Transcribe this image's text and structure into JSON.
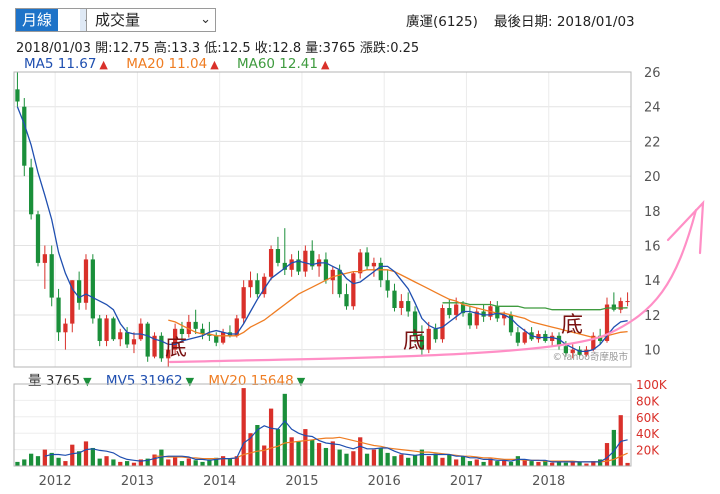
{
  "controls": {
    "period": {
      "selected": "月線"
    },
    "indicator": {
      "selected": "成交量"
    }
  },
  "header": {
    "stock": "廣運(6125)",
    "last_date_label": "最後日期: 2018/01/03"
  },
  "quote": {
    "date": "2018/01/03",
    "open": "開:12.75",
    "high": "高:13.3",
    "low": "低:12.5",
    "close": "收:12.8",
    "volume": "量:3765",
    "change": "漲跌:0.25"
  },
  "ma_legend": [
    {
      "label": "MA5 11.67",
      "color": "#1f4fb0",
      "trend": "up"
    },
    {
      "label": "MA20 11.04",
      "color": "#ef7d23",
      "trend": "up"
    },
    {
      "label": "MA60 12.41",
      "color": "#3f9b3f",
      "trend": "up"
    }
  ],
  "vol_legend": [
    {
      "label": "量 3765",
      "color": "#333333",
      "trend": "down"
    },
    {
      "label": "MV5 31962",
      "color": "#1f4fb0",
      "trend": "down"
    },
    {
      "label": "MV20 15648",
      "color": "#ef7d23",
      "trend": "down"
    }
  ],
  "colors": {
    "up": "#d9302a",
    "down": "#1a8f3a",
    "ma5": "#1f4fb0",
    "ma20": "#ef7d23",
    "ma60": "#3f9b3f",
    "annotation": "#ff8fc6",
    "note": "#7a1212"
  },
  "watermark": "©Yahoo奇摩股市",
  "annotations": {
    "label": "底",
    "count": 3
  },
  "chart_data": {
    "type": "candlestick",
    "price_axis": {
      "ylim": [
        9,
        26
      ],
      "ticks": [
        10,
        12,
        14,
        16,
        18,
        20,
        22,
        24,
        26
      ]
    },
    "volume_axis": {
      "ylim": [
        0,
        100000
      ],
      "ticks": [
        "20K",
        "40K",
        "60K",
        "80K",
        "100K"
      ]
    },
    "x_ticks": [
      "2012",
      "2013",
      "2014",
      "2015",
      "2016",
      "2017",
      "2018"
    ],
    "start_month": "2011-07",
    "ohlc": [
      [
        25,
        26,
        24,
        24.3
      ],
      [
        24,
        24.5,
        20,
        20.6
      ],
      [
        20.5,
        21,
        17.5,
        17.8
      ],
      [
        17.8,
        18,
        14.8,
        15
      ],
      [
        15,
        16,
        13.5,
        15.5
      ],
      [
        15.5,
        16,
        12.5,
        13
      ],
      [
        13,
        13.5,
        10.5,
        11
      ],
      [
        11,
        11.8,
        10,
        11.5
      ],
      [
        11.5,
        14,
        11,
        14
      ],
      [
        14,
        14.5,
        12.3,
        12.7
      ],
      [
        12.7,
        15.5,
        12.3,
        15.2
      ],
      [
        15.2,
        15.5,
        11.5,
        11.8
      ],
      [
        11.8,
        12,
        10.2,
        10.5
      ],
      [
        10.5,
        12,
        10.2,
        11.8
      ],
      [
        11.8,
        11.9,
        10.5,
        10.6
      ],
      [
        10.6,
        11.2,
        10.2,
        11
      ],
      [
        11,
        11.3,
        10.1,
        10.3
      ],
      [
        10.3,
        11,
        9.8,
        10.6
      ],
      [
        10.6,
        11.8,
        10.5,
        11.5
      ],
      [
        11.5,
        11.6,
        9.3,
        9.6
      ],
      [
        9.6,
        11,
        9.5,
        10.8
      ],
      [
        10.8,
        11,
        9.3,
        9.5
      ],
      [
        9.5,
        10.2,
        9,
        10
      ],
      [
        10,
        11.5,
        9.8,
        11.2
      ],
      [
        11.2,
        11.6,
        10.5,
        10.9
      ],
      [
        10.9,
        12,
        10.7,
        11.6
      ],
      [
        11.6,
        12.3,
        10.9,
        11.2
      ],
      [
        11.2,
        11.5,
        10.6,
        10.9
      ],
      [
        10.9,
        11.6,
        10.5,
        10.8
      ],
      [
        10.8,
        11,
        10.2,
        10.4
      ],
      [
        10.4,
        11.2,
        10.3,
        11
      ],
      [
        11,
        11.4,
        10.7,
        10.8
      ],
      [
        10.8,
        12,
        10.7,
        11.8
      ],
      [
        11.8,
        14,
        11.5,
        13.6
      ],
      [
        13.6,
        14.5,
        13,
        14
      ],
      [
        14,
        14.4,
        13,
        13.2
      ],
      [
        13.2,
        14.4,
        13,
        14.2
      ],
      [
        14.2,
        16,
        14,
        15.8
      ],
      [
        15.8,
        16.5,
        14.8,
        15
      ],
      [
        15,
        17,
        14.3,
        14.6
      ],
      [
        14.6,
        15.5,
        14.2,
        15.2
      ],
      [
        15.2,
        15.7,
        14.3,
        14.5
      ],
      [
        14.5,
        16,
        14.2,
        15.7
      ],
      [
        15.7,
        16.3,
        14.6,
        14.8
      ],
      [
        14.8,
        15.5,
        14.2,
        15.2
      ],
      [
        15.2,
        15.6,
        13.8,
        14
      ],
      [
        14,
        14.8,
        13.2,
        14.6
      ],
      [
        14.6,
        14.9,
        13,
        13.2
      ],
      [
        13.2,
        13.8,
        12.3,
        12.5
      ],
      [
        12.5,
        14.5,
        12.3,
        14.4
      ],
      [
        14.4,
        15.8,
        14.1,
        15.6
      ],
      [
        15.6,
        15.9,
        14.6,
        14.8
      ],
      [
        14.8,
        15.3,
        14.2,
        15
      ],
      [
        15,
        15.3,
        13.6,
        14
      ],
      [
        14,
        14.6,
        13,
        13.4
      ],
      [
        13.4,
        13.8,
        12.2,
        12.4
      ],
      [
        12.4,
        13.2,
        12,
        12.8
      ],
      [
        12.8,
        13.3,
        11.9,
        12.2
      ],
      [
        12.2,
        12.5,
        10.4,
        10.8
      ],
      [
        10.8,
        11.4,
        9.6,
        10
      ],
      [
        10,
        11.6,
        9.8,
        11.2
      ],
      [
        11.2,
        11.5,
        10.4,
        10.6
      ],
      [
        10.6,
        12.6,
        10.4,
        12.4
      ],
      [
        12.4,
        12.9,
        11.8,
        12
      ],
      [
        12,
        13,
        11.7,
        12.6
      ],
      [
        12.6,
        12.8,
        11.9,
        12.1
      ],
      [
        12.1,
        12.5,
        11.2,
        11.4
      ],
      [
        11.4,
        12.4,
        11.2,
        12.2
      ],
      [
        12.2,
        12.6,
        11.6,
        11.9
      ],
      [
        11.9,
        12.8,
        11.7,
        12.5
      ],
      [
        12.5,
        12.8,
        11.6,
        11.8
      ],
      [
        11.8,
        12.2,
        11.4,
        12
      ],
      [
        12,
        12.2,
        10.8,
        11
      ],
      [
        11,
        11.3,
        10.2,
        10.4
      ],
      [
        10.4,
        11.2,
        10.3,
        11
      ],
      [
        11,
        11.3,
        10.5,
        10.6
      ],
      [
        10.6,
        11.1,
        10.4,
        10.9
      ],
      [
        10.9,
        11.1,
        10.4,
        10.5
      ],
      [
        10.5,
        11,
        10.2,
        10.8
      ],
      [
        10.8,
        11,
        10,
        10.2
      ],
      [
        10.2,
        10.5,
        9.6,
        9.8
      ],
      [
        9.8,
        10.3,
        9.5,
        10
      ],
      [
        10,
        10.2,
        9.6,
        9.7
      ],
      [
        9.7,
        10.2,
        9.6,
        10
      ],
      [
        10,
        11,
        9.9,
        10.8
      ],
      [
        10.8,
        11.2,
        10.3,
        10.5
      ],
      [
        10.5,
        13,
        10.4,
        12.6
      ],
      [
        12.6,
        13.3,
        12.2,
        12.3
      ],
      [
        12.3,
        13,
        12.1,
        12.8
      ],
      [
        12.75,
        13.3,
        12.5,
        12.8
      ]
    ],
    "ma5": [
      24,
      23,
      21.8,
      20.2,
      18.9,
      17.5,
      15.6,
      14.4,
      13.5,
      13,
      13.2,
      13,
      12.8,
      12.6,
      12.3,
      11.5,
      11,
      10.9,
      10.9,
      10.8,
      10.6,
      10.5,
      10.3,
      10.3,
      10.5,
      10.6,
      10.7,
      10.8,
      11,
      11.1,
      11,
      10.9,
      10.9,
      11.5,
      12.2,
      12.9,
      13.5,
      14.1,
      14.4,
      14.7,
      15,
      15.1,
      15,
      14.9,
      15,
      15,
      14.8,
      14.6,
      14.1,
      13.8,
      13.9,
      14.2,
      14.5,
      14.8,
      14.8,
      14.5,
      14,
      13.5,
      12.7,
      11.8,
      11.4,
      11.2,
      11.3,
      11.6,
      11.9,
      12.2,
      12.2,
      12.1,
      12,
      12,
      12.1,
      12,
      11.8,
      11.4,
      11.1,
      10.8,
      10.7,
      10.7,
      10.7,
      10.6,
      10.3,
      10.1,
      9.9,
      9.9,
      10,
      10.3,
      10.8,
      11.3,
      11.6,
      11.67
    ],
    "ma20": [
      null,
      null,
      null,
      null,
      null,
      null,
      null,
      null,
      null,
      null,
      null,
      null,
      null,
      null,
      null,
      null,
      null,
      null,
      null,
      null,
      null,
      null,
      11.7,
      11.6,
      11.4,
      11.2,
      11,
      10.9,
      10.9,
      10.8,
      10.8,
      10.8,
      10.8,
      11,
      11.3,
      11.5,
      11.7,
      12,
      12.3,
      12.6,
      12.9,
      13.2,
      13.4,
      13.6,
      13.8,
      14,
      14.2,
      14.3,
      14.4,
      14.5,
      14.5,
      14.6,
      14.6,
      14.6,
      14.6,
      14.5,
      14.3,
      14.1,
      13.9,
      13.7,
      13.5,
      13.3,
      13.1,
      12.9,
      12.8,
      12.6,
      12.5,
      12.4,
      12.3,
      12.2,
      12.1,
      12.1,
      12,
      11.9,
      11.8,
      11.6,
      11.5,
      11.4,
      11.3,
      11.2,
      11.1,
      11,
      10.9,
      10.8,
      10.7,
      10.7,
      10.8,
      10.9,
      11,
      11.04
    ],
    "ma60": [
      null,
      null,
      null,
      null,
      null,
      null,
      null,
      null,
      null,
      null,
      null,
      null,
      null,
      null,
      null,
      null,
      null,
      null,
      null,
      null,
      null,
      null,
      null,
      null,
      null,
      null,
      null,
      null,
      null,
      null,
      null,
      null,
      null,
      null,
      null,
      null,
      null,
      null,
      null,
      null,
      null,
      null,
      null,
      null,
      null,
      null,
      null,
      null,
      null,
      null,
      null,
      null,
      null,
      null,
      null,
      null,
      null,
      null,
      null,
      null,
      null,
      null,
      12.7,
      12.7,
      12.7,
      12.7,
      12.6,
      12.6,
      12.6,
      12.6,
      12.5,
      12.5,
      12.5,
      12.5,
      12.4,
      12.4,
      12.4,
      12.4,
      12.3,
      12.3,
      12.3,
      12.3,
      12.3,
      12.3,
      12.3,
      12.3,
      12.4,
      12.4,
      12.4,
      12.41
    ],
    "volume": [
      5000,
      8000,
      15000,
      12000,
      20000,
      16000,
      10000,
      6000,
      26000,
      18000,
      30000,
      22000,
      9000,
      12000,
      8000,
      5000,
      6000,
      4000,
      8000,
      9000,
      14000,
      20000,
      8000,
      11000,
      6000,
      9000,
      7000,
      5000,
      8000,
      10000,
      12000,
      9000,
      12000,
      95000,
      40000,
      50000,
      25000,
      70000,
      45000,
      88000,
      35000,
      30000,
      45000,
      32000,
      28000,
      22000,
      30000,
      20000,
      15000,
      18000,
      35000,
      15000,
      20000,
      22000,
      16000,
      12000,
      14000,
      10000,
      13000,
      20000,
      12000,
      15000,
      10000,
      14000,
      8000,
      12000,
      6000,
      8000,
      5000,
      9000,
      6000,
      7000,
      5000,
      12000,
      8000,
      6000,
      5000,
      6000,
      4000,
      6000,
      4000,
      5000,
      5000,
      3000,
      6000,
      8000,
      28000,
      44000,
      62000,
      3765
    ],
    "mv5": [
      null,
      null,
      null,
      null,
      12000,
      14000,
      14000,
      13000,
      15000,
      16000,
      20000,
      21000,
      19000,
      18000,
      16000,
      11000,
      8000,
      7000,
      6000,
      7000,
      9000,
      11000,
      12000,
      12000,
      12000,
      11000,
      8000,
      8000,
      7000,
      8000,
      9000,
      9000,
      10000,
      28000,
      34000,
      44000,
      49000,
      46000,
      45000,
      55000,
      45000,
      40000,
      37000,
      36000,
      31000,
      28000,
      27000,
      26000,
      23000,
      21000,
      24000,
      21000,
      21000,
      22000,
      22000,
      18000,
      15000,
      14000,
      13000,
      14000,
      14000,
      14000,
      14000,
      14000,
      12000,
      12000,
      10000,
      10000,
      8000,
      8000,
      7000,
      7000,
      6000,
      8000,
      8000,
      7000,
      7000,
      7000,
      5000,
      5000,
      5000,
      5000,
      5000,
      5000,
      5000,
      5000,
      10000,
      18000,
      30000,
      31962
    ],
    "mv20": [
      null,
      null,
      null,
      null,
      null,
      null,
      null,
      null,
      null,
      null,
      null,
      null,
      null,
      null,
      null,
      null,
      null,
      null,
      null,
      null,
      12000,
      12000,
      11000,
      11000,
      11000,
      10000,
      10000,
      9000,
      9000,
      9000,
      9000,
      9000,
      10000,
      14000,
      16000,
      18000,
      19000,
      22000,
      24000,
      28000,
      29000,
      30000,
      31000,
      32000,
      33000,
      34000,
      34000,
      35000,
      33000,
      31000,
      29000,
      27000,
      25000,
      24000,
      22000,
      21000,
      20000,
      19000,
      18000,
      17000,
      17000,
      16000,
      15000,
      14000,
      13000,
      12000,
      12000,
      11000,
      10000,
      10000,
      9000,
      8000,
      8000,
      8000,
      7000,
      7000,
      7000,
      6000,
      6000,
      6000,
      6000,
      6000,
      5000,
      5000,
      5000,
      5000,
      6000,
      8000,
      12000,
      15648
    ]
  }
}
